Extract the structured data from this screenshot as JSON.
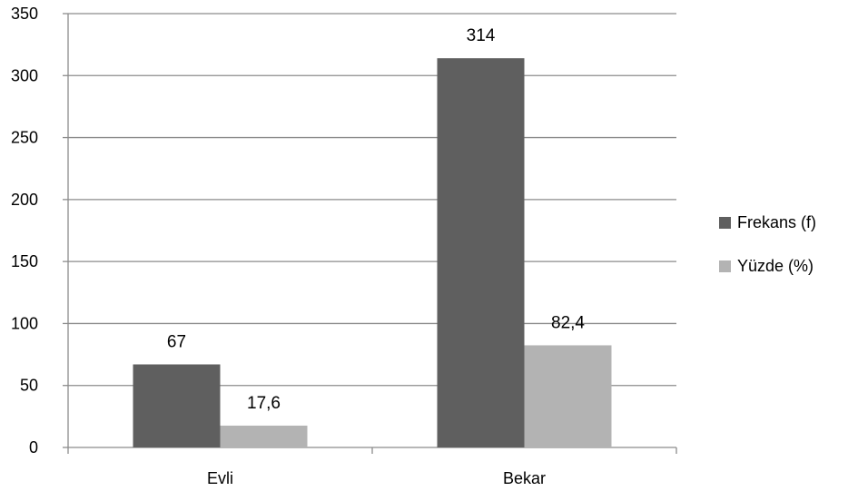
{
  "chart_data": {
    "type": "bar",
    "categories": [
      "Evli",
      "Bekar"
    ],
    "series": [
      {
        "name": "Frekans (f)",
        "values": [
          67,
          314
        ],
        "labels": [
          "67",
          "314"
        ]
      },
      {
        "name": "Yüzde (%)",
        "values": [
          17.6,
          82.4
        ],
        "labels": [
          "17,6",
          "82,4"
        ]
      }
    ],
    "title": "",
    "xlabel": "",
    "ylabel": "",
    "ylim": [
      0,
      350
    ],
    "yticks": [
      0,
      50,
      100,
      150,
      200,
      250,
      300,
      350
    ],
    "grid": true,
    "legend_position": "right",
    "colors": [
      "#5f5f5f",
      "#b3b3b3"
    ],
    "grid_color": "#8c8c8c",
    "axis_color": "#8c8c8c"
  }
}
